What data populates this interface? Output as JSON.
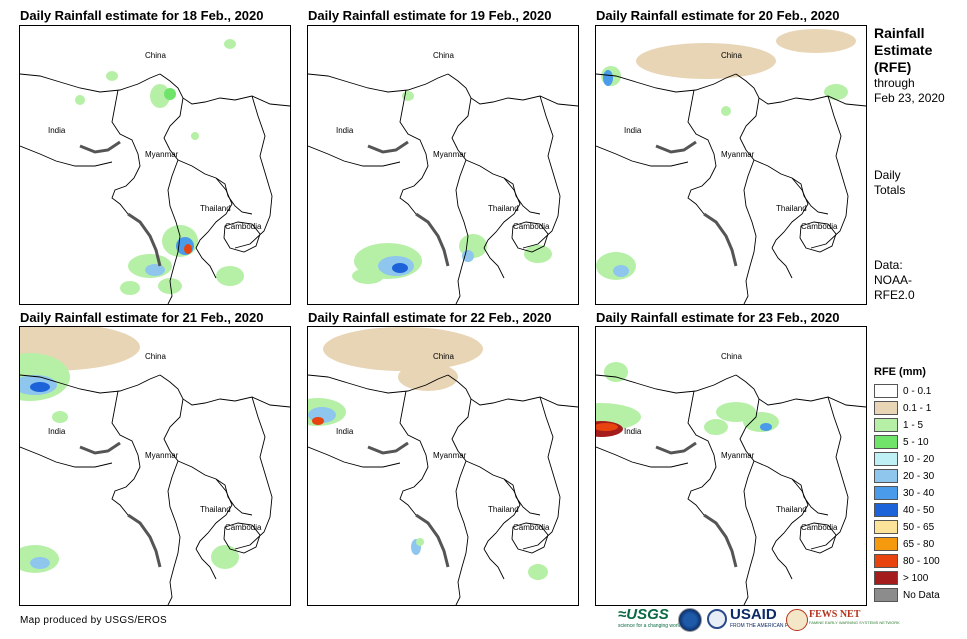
{
  "panels": [
    {
      "title": "Daily Rainfall estimate for 18 Feb., 2020",
      "labels": {
        "china": "China",
        "india": "India",
        "myanmar": "Myanmar",
        "thailand": "Thailand",
        "cambodia": "Cambodia"
      }
    },
    {
      "title": "Daily Rainfall estimate for 19 Feb., 2020",
      "labels": {
        "china": "China",
        "india": "India",
        "myanmar": "Myanmar",
        "thailand": "Thailand",
        "cambodia": "Cambodia"
      }
    },
    {
      "title": "Daily Rainfall estimate for 20 Feb., 2020",
      "labels": {
        "china": "China",
        "india": "India",
        "myanmar": "Myanmar",
        "thailand": "Thailand",
        "cambodia": "Cambodia"
      }
    },
    {
      "title": "Daily Rainfall estimate for 21 Feb., 2020",
      "labels": {
        "china": "China",
        "india": "India",
        "myanmar": "Myanmar",
        "thailand": "Thailand",
        "cambodia": "Cambodia"
      }
    },
    {
      "title": "Daily Rainfall estimate for 22 Feb., 2020",
      "labels": {
        "china": "China",
        "india": "India",
        "myanmar": "Myanmar",
        "thailand": "Thailand",
        "cambodia": "Cambodia"
      }
    },
    {
      "title": "Daily Rainfall estimate for 23 Feb., 2020",
      "labels": {
        "china": "China",
        "india": "India",
        "myanmar": "Myanmar",
        "thailand": "Thailand",
        "cambodia": "Cambodia"
      }
    }
  ],
  "sidebar": {
    "title_line1": "Rainfall",
    "title_line2": "Estimate",
    "title_line3": "(RFE)",
    "through_label": "through",
    "through_date": "Feb 23, 2020",
    "daily_line1": "Daily",
    "daily_line2": "Totals",
    "data_line1": "Data:",
    "data_line2": "NOAA-",
    "data_line3": "RFE2.0"
  },
  "legend": {
    "title": "RFE (mm)",
    "items": [
      {
        "label": "0 - 0.1",
        "color": "#ffffff"
      },
      {
        "label": "0.1 - 1",
        "color": "#e8d5b5"
      },
      {
        "label": "1 - 5",
        "color": "#b6f0a6"
      },
      {
        "label": "5 - 10",
        "color": "#6fe36a"
      },
      {
        "label": "10 - 20",
        "color": "#bff0f5"
      },
      {
        "label": "20 - 30",
        "color": "#8ec6ee"
      },
      {
        "label": "30 - 40",
        "color": "#4a9bea"
      },
      {
        "label": "40 - 50",
        "color": "#1c62d8"
      },
      {
        "label": "50 - 65",
        "color": "#fbe49a"
      },
      {
        "label": "65 - 80",
        "color": "#f59a0f"
      },
      {
        "label": "80 - 100",
        "color": "#e8440f"
      },
      {
        "label": "> 100",
        "color": "#a41c1c"
      },
      {
        "label": "No Data",
        "color": "#8c8c8c"
      }
    ]
  },
  "footer": {
    "credit": "Map produced by USGS/EROS",
    "usgs": "≈USGS",
    "usgs_tagline": "science for a changing world",
    "usaid": "USAID",
    "usaid_tagline": "FROM THE AMERICAN PEOPLE",
    "fews": "FEWS NET",
    "fews_tagline": "FAMINE EARLY WARNING SYSTEMS NETWORK"
  }
}
